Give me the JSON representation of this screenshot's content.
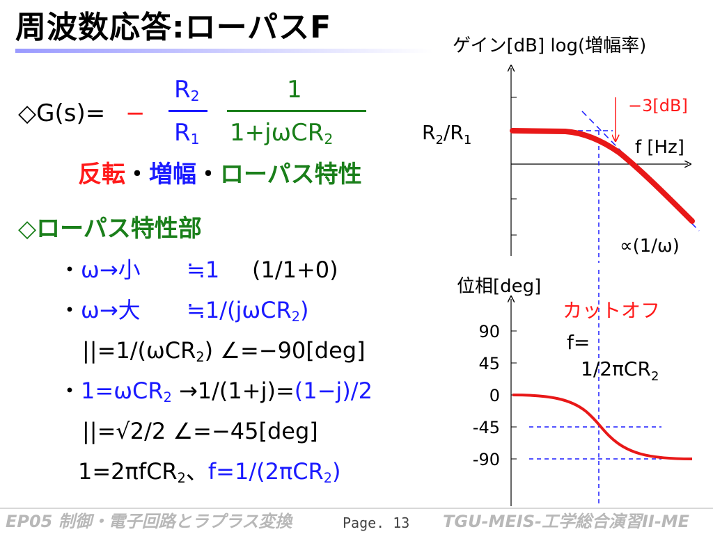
{
  "title": "周波数応答:ローパスF",
  "formula": {
    "g_label": "◇G(s)=",
    "minus": "−",
    "frac1_num": "R",
    "frac1_num_sub": "2",
    "frac1_den": "R",
    "frac1_den_sub": "1",
    "frac2_num": "1",
    "frac2_den": "1+jωCR",
    "frac2_den_sub": "2"
  },
  "properties": {
    "inverted": "反転",
    "sep1": "・",
    "amplify": "増幅",
    "sep2": "・",
    "lowpass": "ローパス特性"
  },
  "section_head": "◇ローパス特性部",
  "bullets": {
    "b1_dot": "・",
    "b1_blue": "ω→小",
    "b1_approx": "≒1",
    "b1_rest": "(1/1+0)",
    "b2_dot": "・",
    "b2_blue": "ω→大",
    "b2_approx": "≒1/(jωCR",
    "b2_sub": "2",
    "b2_close": ")",
    "line3_a": "||=1/(ωCR",
    "line3_sub": "2",
    "line3_b": ") ∠=−90[deg]",
    "b3_dot": "・",
    "b3_blue": "1=ωCR",
    "b3_sub": "2",
    "b3_mid": " →1/(1+j)=",
    "b3_blue2": "(1−j)/2",
    "line5": "||=√2/2  ∠=−45[deg]",
    "line6_a": "1=2πfCR",
    "line6_sub": "2",
    "line6_b": "、",
    "line6_blue": "f=1/(2πCR",
    "line6_blue_sub": "2",
    "line6_blue_close": ")"
  },
  "gain_graph": {
    "ylabel": "ゲイン[dB] log(増幅率)",
    "r_label": "R",
    "r_sub2": "2",
    "r_slash": "/R",
    "r_sub1": "1",
    "cutoff_label": "−3[dB]",
    "xlabel": "f [Hz]",
    "asymptote_label": "∝(1/ω)"
  },
  "phase_graph": {
    "ylabel": "位相[deg]",
    "ticks": [
      "90",
      "45",
      "0",
      "-45",
      "-90"
    ],
    "cutoff_title": "カットオフ",
    "f_eq": "f=",
    "f_formula": "1/2πCR",
    "f_formula_sub": "2"
  },
  "colors": {
    "blue": "#1a1aff",
    "green": "#1a7f1a",
    "red": "#ff1a1a",
    "curve": "#e81818"
  },
  "footer": {
    "left": "EP05  制御・電子回路とラプラス変換",
    "page": "Page. 13",
    "right": "TGU-MEIS-工学総合演習II-ME"
  }
}
